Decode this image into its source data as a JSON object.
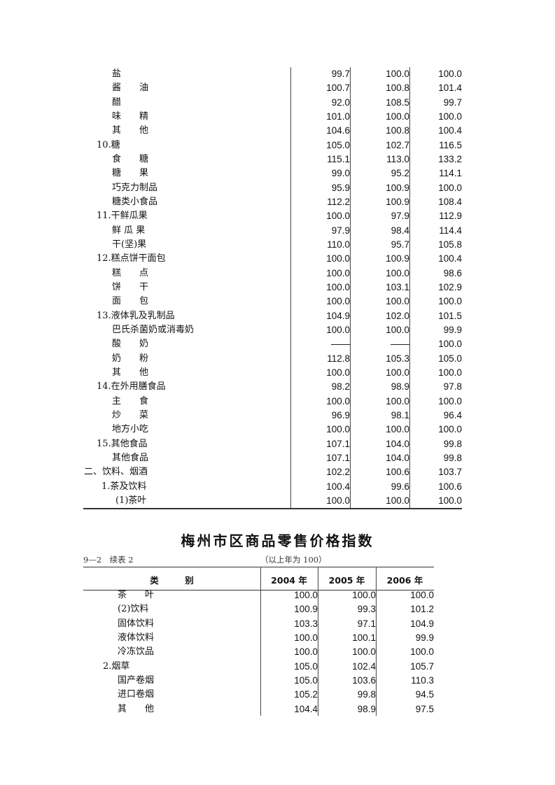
{
  "table1": {
    "rows": [
      {
        "label": "盐",
        "values": [
          "99.7",
          "100.0",
          "100.0"
        ]
      },
      {
        "label": "酱　　油",
        "values": [
          "100.7",
          "100.8",
          "101.4"
        ]
      },
      {
        "label": "醋",
        "values": [
          "92.0",
          "108.5",
          "99.7"
        ]
      },
      {
        "label": "味　　精",
        "values": [
          "101.0",
          "100.0",
          "100.0"
        ]
      },
      {
        "label": "其　　他",
        "values": [
          "104.6",
          "100.8",
          "100.4"
        ]
      },
      {
        "label": "10.糖",
        "values": [
          "105.0",
          "102.7",
          "116.5"
        ]
      },
      {
        "label": "食　　糖",
        "values": [
          "115.1",
          "113.0",
          "133.2"
        ]
      },
      {
        "label": "糖　　果",
        "values": [
          "99.0",
          "95.2",
          "114.1"
        ]
      },
      {
        "label": "巧克力制品",
        "values": [
          "95.9",
          "100.9",
          "100.0"
        ]
      },
      {
        "label": "糖类小食品",
        "values": [
          "112.2",
          "100.9",
          "108.4"
        ]
      },
      {
        "label": "11.干鲜瓜果",
        "values": [
          "100.0",
          "97.9",
          "112.9"
        ]
      },
      {
        "label": "鲜 瓜 果",
        "values": [
          "97.9",
          "98.4",
          "114.4"
        ]
      },
      {
        "label": "干(坚)果",
        "values": [
          "110.0",
          "95.7",
          "105.8"
        ]
      },
      {
        "label": "12.糕点饼干面包",
        "values": [
          "100.0",
          "100.9",
          "100.4"
        ]
      },
      {
        "label": "糕　　点",
        "values": [
          "100.0",
          "100.0",
          "98.6"
        ]
      },
      {
        "label": "饼　　干",
        "values": [
          "100.0",
          "103.1",
          "102.9"
        ]
      },
      {
        "label": "面　　包",
        "values": [
          "100.0",
          "100.0",
          "100.0"
        ]
      },
      {
        "label": "13.液体乳及乳制品",
        "values": [
          "104.9",
          "102.0",
          "101.5"
        ]
      },
      {
        "label": "巴氏杀菌奶或消毒奶",
        "values": [
          "100.0",
          "100.0",
          "99.9"
        ]
      },
      {
        "label": "酸　　奶",
        "values": [
          "——",
          "——",
          "100.0"
        ]
      },
      {
        "label": "奶　　粉",
        "values": [
          "112.8",
          "105.3",
          "105.0"
        ]
      },
      {
        "label": "其　　他",
        "values": [
          "100.0",
          "100.0",
          "100.0"
        ]
      },
      {
        "label": "14.在外用膳食品",
        "values": [
          "98.2",
          "98.9",
          "97.8"
        ]
      },
      {
        "label": "主　　食",
        "values": [
          "100.0",
          "100.0",
          "100.0"
        ]
      },
      {
        "label": "炒　　菜",
        "values": [
          "96.9",
          "98.1",
          "96.4"
        ]
      },
      {
        "label": "地方小吃",
        "values": [
          "100.0",
          "100.0",
          "100.0"
        ]
      },
      {
        "label": "15.其他食品",
        "values": [
          "107.1",
          "104.0",
          "99.8"
        ]
      },
      {
        "label": "其他食品",
        "values": [
          "107.1",
          "104.0",
          "99.8"
        ]
      },
      {
        "label": "二、饮料、烟酒",
        "values": [
          "102.2",
          "100.6",
          "103.7"
        ]
      },
      {
        "label": "1.茶及饮料",
        "values": [
          "100.4",
          "99.6",
          "100.6"
        ]
      },
      {
        "label": "(1)茶叶",
        "values": [
          "100.0",
          "100.0",
          "100.0"
        ]
      }
    ]
  },
  "table2": {
    "title": "梅州市区商品零售价格指数",
    "table_no": "9—2　续表 2",
    "base_note": "（以上年为 100）",
    "headers": {
      "category": "类　　　别",
      "y2004": "2004 年",
      "y2005": "2005 年",
      "y2006": "2006 年"
    },
    "rows": [
      {
        "label": "茶　　叶",
        "values": [
          "100.0",
          "100.0",
          "100.0"
        ]
      },
      {
        "label": "(2)饮料",
        "values": [
          "100.9",
          "99.3",
          "101.2"
        ]
      },
      {
        "label": "固体饮料",
        "values": [
          "103.3",
          "97.1",
          "104.9"
        ]
      },
      {
        "label": "液体饮料",
        "values": [
          "100.0",
          "100.1",
          "99.9"
        ]
      },
      {
        "label": "冷冻饮品",
        "values": [
          "100.0",
          "100.0",
          "100.0"
        ]
      },
      {
        "label": "2.烟草",
        "values": [
          "105.0",
          "102.4",
          "105.7"
        ]
      },
      {
        "label": "国产卷烟",
        "values": [
          "105.0",
          "103.6",
          "110.3"
        ]
      },
      {
        "label": "进口卷烟",
        "values": [
          "105.2",
          "99.8",
          "94.5"
        ]
      },
      {
        "label": "其　　他",
        "values": [
          "104.4",
          "98.9",
          "97.5"
        ]
      }
    ]
  }
}
